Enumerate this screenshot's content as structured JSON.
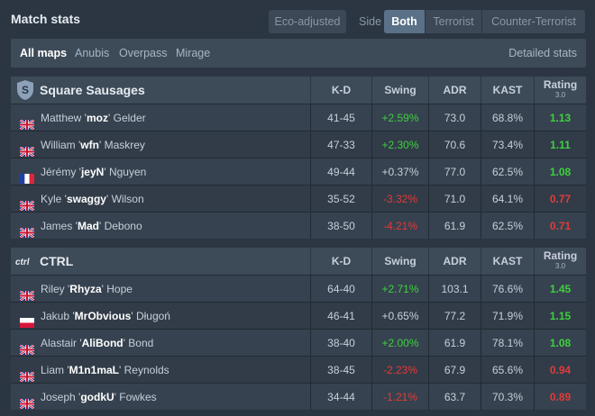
{
  "header": {
    "title": "Match stats",
    "eco_label": "Eco-adjusted",
    "side_label": "Side",
    "side_options": [
      "Both",
      "Terrorist",
      "Counter-Terrorist"
    ]
  },
  "maps": {
    "items": [
      "All maps",
      "Anubis",
      "Overpass",
      "Mirage"
    ],
    "active": "All maps",
    "detailed_label": "Detailed stats"
  },
  "columns": {
    "kd": "K-D",
    "swing": "Swing",
    "adr": "ADR",
    "kast": "KAST",
    "rating": "Rating",
    "rating_version": "3.0"
  },
  "colors": {
    "positive": "#3fd03f",
    "negative": "#e23a3a",
    "accent": "#5a7187"
  },
  "teams": [
    {
      "name": "Square Sausages",
      "logo": "shield-s-icon",
      "logo_text": "S",
      "players": [
        {
          "first": "Matthew '",
          "nick": "moz",
          "last": "' Gelder",
          "flag": "uk-flag",
          "kd": "41-45",
          "swing": "+2.59%",
          "adr": "73.0",
          "kast": "68.8%",
          "rating": "1.13"
        },
        {
          "first": "William '",
          "nick": "wfn",
          "last": "' Maskrey",
          "flag": "uk-flag",
          "kd": "47-33",
          "swing": "+2.30%",
          "adr": "70.6",
          "kast": "73.4%",
          "rating": "1.11"
        },
        {
          "first": "Jérémy '",
          "nick": "jeyN",
          "last": "' Nguyen",
          "flag": "france-flag",
          "kd": "49-44",
          "swing": "+0.37%",
          "adr": "77.0",
          "kast": "62.5%",
          "rating": "1.08"
        },
        {
          "first": "Kyle '",
          "nick": "swaggy",
          "last": "' Wilson",
          "flag": "uk-flag",
          "kd": "35-52",
          "swing": "-3.32%",
          "adr": "71.0",
          "kast": "64.1%",
          "rating": "0.77"
        },
        {
          "first": "James '",
          "nick": "Mad",
          "last": "' Debono",
          "flag": "uk-flag",
          "kd": "38-50",
          "swing": "-4.21%",
          "adr": "61.9",
          "kast": "62.5%",
          "rating": "0.71"
        }
      ]
    },
    {
      "name": "CTRL",
      "logo": "ctrl-logo-icon",
      "logo_text": "ctrl",
      "players": [
        {
          "first": "Riley '",
          "nick": "Rhyza",
          "last": "' Hope",
          "flag": "uk-flag",
          "kd": "64-40",
          "swing": "+2.71%",
          "adr": "103.1",
          "kast": "76.6%",
          "rating": "1.45"
        },
        {
          "first": "Jakub '",
          "nick": "MrObvious",
          "last": "' Długoń",
          "flag": "poland-flag",
          "kd": "46-41",
          "swing": "+0.65%",
          "adr": "77.2",
          "kast": "71.9%",
          "rating": "1.15"
        },
        {
          "first": "Alastair '",
          "nick": "AliBond",
          "last": "' Bond",
          "flag": "uk-flag",
          "kd": "38-40",
          "swing": "+2.00%",
          "adr": "61.9",
          "kast": "78.1%",
          "rating": "1.08"
        },
        {
          "first": "Liam '",
          "nick": "M1n1maL",
          "last": "' Reynolds",
          "flag": "uk-flag",
          "kd": "38-45",
          "swing": "-2.23%",
          "adr": "67.9",
          "kast": "65.6%",
          "rating": "0.94"
        },
        {
          "first": "Joseph '",
          "nick": "godkU",
          "last": "' Fowkes",
          "flag": "uk-flag",
          "kd": "34-44",
          "swing": "-1.21%",
          "adr": "63.7",
          "kast": "70.3%",
          "rating": "0.89"
        }
      ]
    }
  ]
}
